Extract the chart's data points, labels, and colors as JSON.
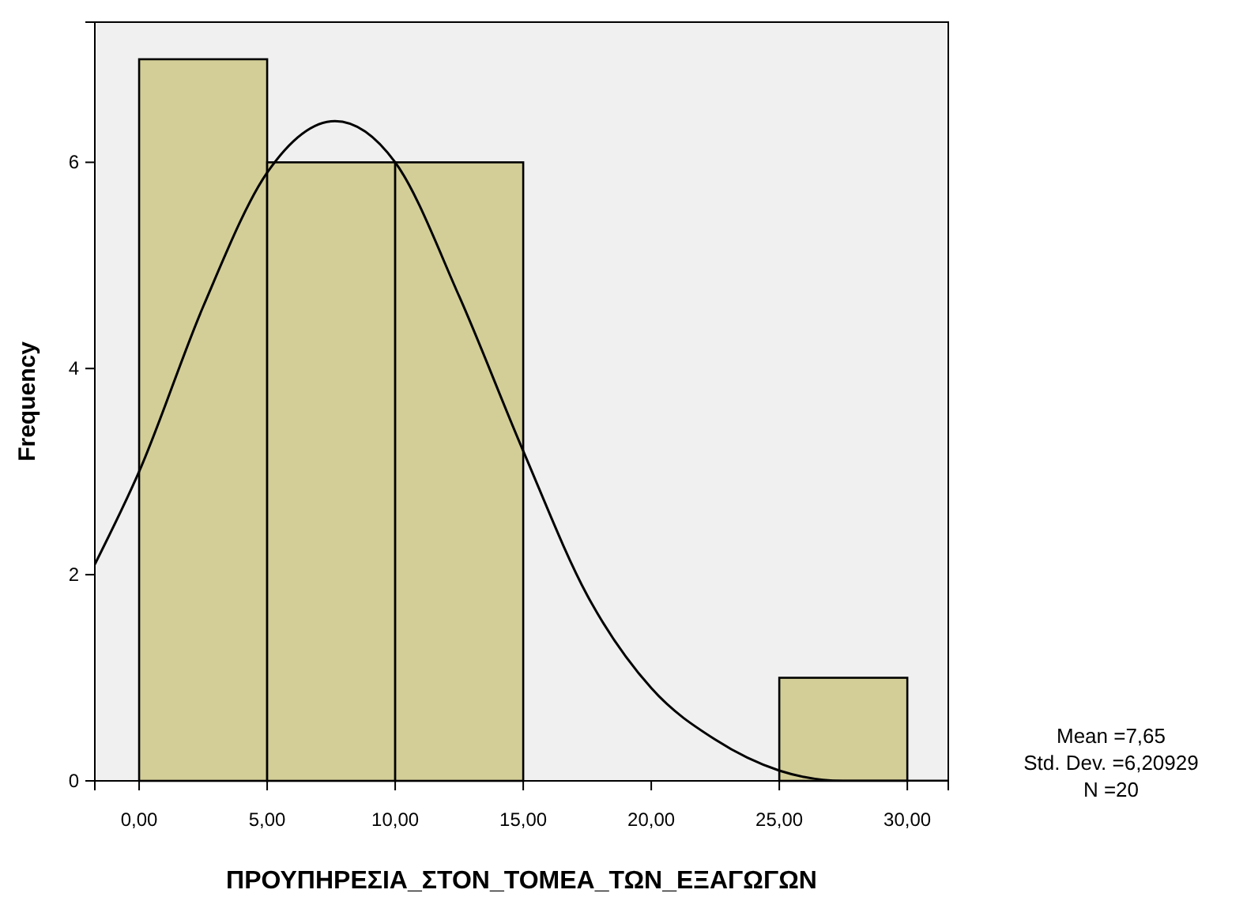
{
  "chart_data": {
    "type": "histogram",
    "xlabel": "ΠΡΟΥΠΗΡΕΣΙΑ_ΣΤΟΝ_ΤΟΜΕΑ_ΤΩΝ_ΕΞΑΓΩΓΩΝ",
    "ylabel": "Frequency",
    "bins": [
      0,
      5,
      10,
      15,
      20,
      25,
      30
    ],
    "series": [
      {
        "color": "#d3ce97",
        "values": [
          7,
          6,
          6,
          0,
          0,
          1
        ]
      },
      {
        "type": "line",
        "color": "#000000",
        "x": [
          -1.73,
          0,
          2.5,
          5,
          7.65,
          10,
          12.5,
          15,
          17.5,
          20,
          22.5,
          25,
          27.5,
          30,
          31.6
        ],
        "values": [
          2.1,
          3.0,
          4.6,
          5.9,
          6.4,
          6.0,
          4.7,
          3.2,
          1.8,
          0.9,
          0.4,
          0.1,
          0.0,
          0.0,
          0.0
        ]
      }
    ],
    "xlim": [
      -1.73,
      31.6
    ],
    "ylim": [
      0,
      7.36
    ],
    "xticks": [
      {
        "value": 0,
        "label": "0,00"
      },
      {
        "value": 5,
        "label": "5,00"
      },
      {
        "value": 10,
        "label": "10,00"
      },
      {
        "value": 15,
        "label": "15,00"
      },
      {
        "value": 20,
        "label": "20,00"
      },
      {
        "value": 25,
        "label": "25,00"
      },
      {
        "value": 30,
        "label": "30,00"
      }
    ],
    "yticks": [
      0,
      2,
      4,
      6
    ],
    "annotations": [
      "Mean =7,65",
      "Std. Dev. =6,20929",
      "N =20"
    ],
    "grid": false,
    "marker": "none",
    "line_style": "solid"
  }
}
